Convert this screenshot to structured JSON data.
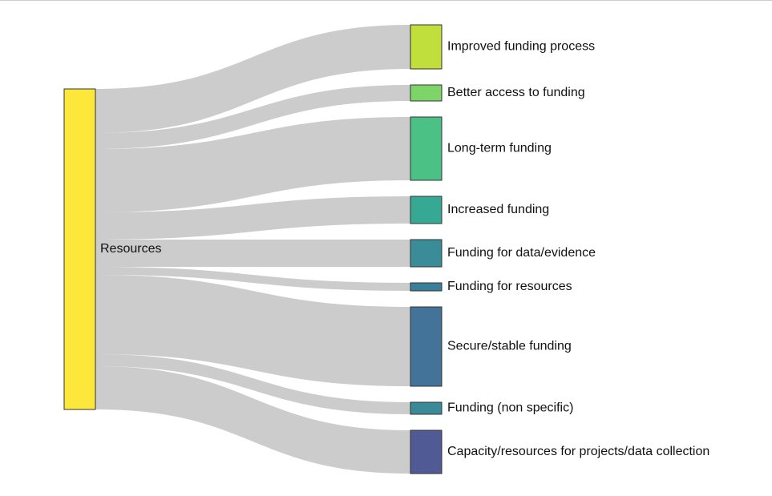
{
  "chart_data": {
    "type": "sankey",
    "source": {
      "name": "Resources",
      "color": "#fde73a"
    },
    "targets": [
      {
        "name": "Improved funding process",
        "value": 55,
        "color": "#c1df3c"
      },
      {
        "name": "Better access to funding",
        "value": 20,
        "color": "#7dd468"
      },
      {
        "name": "Long-term funding",
        "value": 79,
        "color": "#4cc186"
      },
      {
        "name": "Increased funding",
        "value": 34,
        "color": "#35a994"
      },
      {
        "name": "Funding for data/evidence",
        "value": 34,
        "color": "#3a8d98"
      },
      {
        "name": "Funding for resources",
        "value": 10,
        "color": "#397f99"
      },
      {
        "name": "Secure/stable funding",
        "value": 99,
        "color": "#44739a"
      },
      {
        "name": "Funding (non specific)",
        "value": 15,
        "color": "#3a8a98"
      },
      {
        "name": "Capacity/resources for projects/data collection",
        "value": 54,
        "color": "#505a95"
      }
    ],
    "link_color": "#c9c9c9"
  }
}
